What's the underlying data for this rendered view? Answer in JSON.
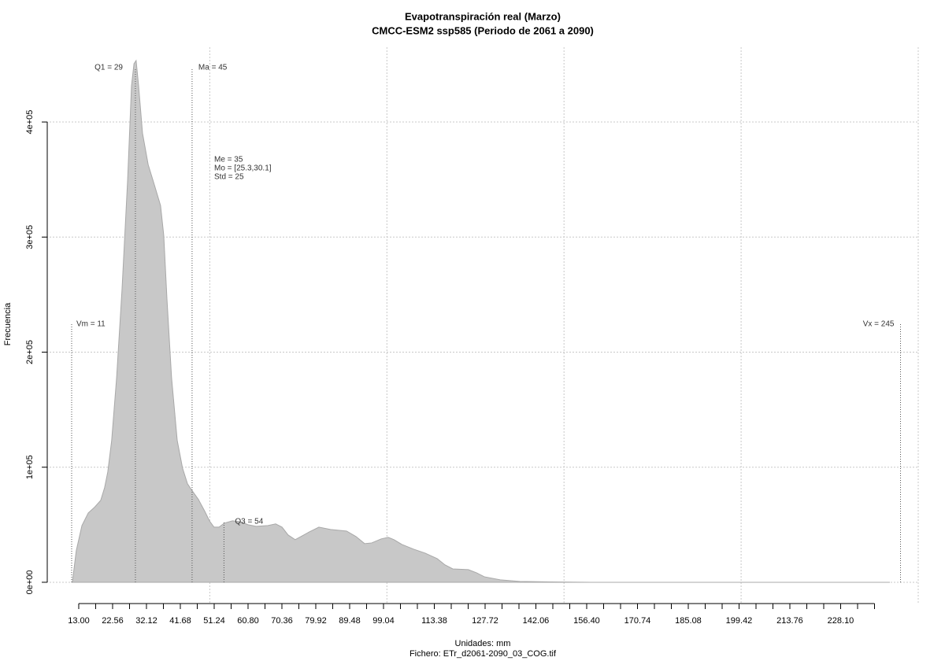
{
  "chart_data": {
    "type": "area",
    "title": "Evapotranspiración real (Marzo)",
    "subtitle": "CMCC-ESM2 ssp585 (Periodo de 2061 a 2090)",
    "xlabel": "Unidades: mm",
    "caption": "Fichero: ETr_d2061-2090_03_COG.tif",
    "ylabel": "Frecuencia",
    "color": "#c8c8c8",
    "x": [
      11.2,
      12.3,
      13.9,
      15.7,
      17.4,
      19.2,
      20.3,
      21.2,
      22.3,
      23.7,
      25.2,
      26.8,
      27.9,
      28.6,
      29.2,
      29.9,
      31.0,
      32.6,
      34.3,
      36.1,
      37.0,
      37.9,
      39.2,
      40.8,
      42.3,
      43.7,
      45.2,
      46.8,
      48.6,
      49.9,
      51.2,
      52.6,
      54.1,
      56.4,
      58.6,
      60.8,
      63.1,
      66.4,
      68.6,
      70.4,
      72.1,
      74.1,
      75.7,
      78.1,
      80.8,
      84.1,
      88.6,
      91.3,
      93.7,
      95.7,
      98.4,
      100.4,
      102.0,
      104.2,
      107.5,
      110.8,
      114.2,
      116.4,
      118.6,
      123.0,
      125.3,
      127.5,
      132.0,
      137.5,
      146.4,
      157.5,
      242.0
    ],
    "values": [
      0,
      27400,
      49300,
      60300,
      65000,
      71200,
      82200,
      95900,
      123300,
      178000,
      253400,
      349300,
      431500,
      450700,
      453400,
      431500,
      390400,
      363000,
      345900,
      327400,
      301400,
      246600,
      178100,
      123300,
      99300,
      85600,
      78800,
      71900,
      61600,
      53400,
      47900,
      47900,
      51400,
      53400,
      52700,
      50000,
      48600,
      49300,
      50700,
      47900,
      41100,
      37000,
      39700,
      43800,
      47900,
      45900,
      44500,
      39700,
      33600,
      34200,
      37700,
      39000,
      37000,
      32900,
      28800,
      25300,
      20500,
      15100,
      11600,
      11000,
      8200,
      4800,
      2100,
      700,
      300,
      0,
      0
    ],
    "xlim": [
      3,
      250
    ],
    "ylim": [
      -18500,
      465000
    ],
    "xticks": [
      {
        "value": 13.0,
        "label": "13.00"
      },
      {
        "value": 22.56,
        "label": "22.56"
      },
      {
        "value": 32.12,
        "label": "32.12"
      },
      {
        "value": 41.68,
        "label": "41.68"
      },
      {
        "value": 51.24,
        "label": "51.24"
      },
      {
        "value": 60.8,
        "label": "60.80"
      },
      {
        "value": 70.36,
        "label": "70.36"
      },
      {
        "value": 79.92,
        "label": "79.92"
      },
      {
        "value": 89.48,
        "label": "89.48"
      },
      {
        "value": 99.04,
        "label": "99.04"
      },
      {
        "value": 113.38,
        "label": "113.38"
      },
      {
        "value": 127.72,
        "label": "127.72"
      },
      {
        "value": 142.06,
        "label": "142.06"
      },
      {
        "value": 156.4,
        "label": "156.40"
      },
      {
        "value": 170.74,
        "label": "170.74"
      },
      {
        "value": 185.08,
        "label": "185.08"
      },
      {
        "value": 199.42,
        "label": "199.42"
      },
      {
        "value": 213.76,
        "label": "213.76"
      },
      {
        "value": 228.1,
        "label": "228.10"
      }
    ],
    "xminorticks": [
      17.78,
      27.34,
      36.9,
      46.46,
      56.02,
      65.58,
      75.14,
      84.7,
      94.26,
      103.82,
      108.6,
      118.16,
      122.94,
      132.5,
      137.28,
      146.84,
      151.62,
      161.18,
      165.96,
      175.52,
      180.3,
      189.86,
      194.64,
      204.2,
      208.98,
      218.54,
      223.32,
      232.88,
      237.66
    ],
    "yticks": [
      {
        "value": 0,
        "label": "0e+00"
      },
      {
        "value": 100000,
        "label": "1e+05"
      },
      {
        "value": 200000,
        "label": "2e+05"
      },
      {
        "value": 300000,
        "label": "3e+05"
      },
      {
        "value": 400000,
        "label": "4e+05"
      }
    ],
    "xgrid": [
      50,
      100,
      150,
      200,
      250
    ],
    "grid": true,
    "markers": [
      {
        "label": "Q1 = 29",
        "value": 29
      },
      {
        "label": "Ma = 45",
        "value": 45
      },
      {
        "label": "Q3 = 54",
        "value": 54
      },
      {
        "label": "Vm = 11",
        "value": 11
      },
      {
        "label": "Vx = 245",
        "value": 245
      }
    ],
    "stats": [
      "Me = 35",
      "Mo = [25.3,30.1]",
      "Std = 25"
    ]
  }
}
